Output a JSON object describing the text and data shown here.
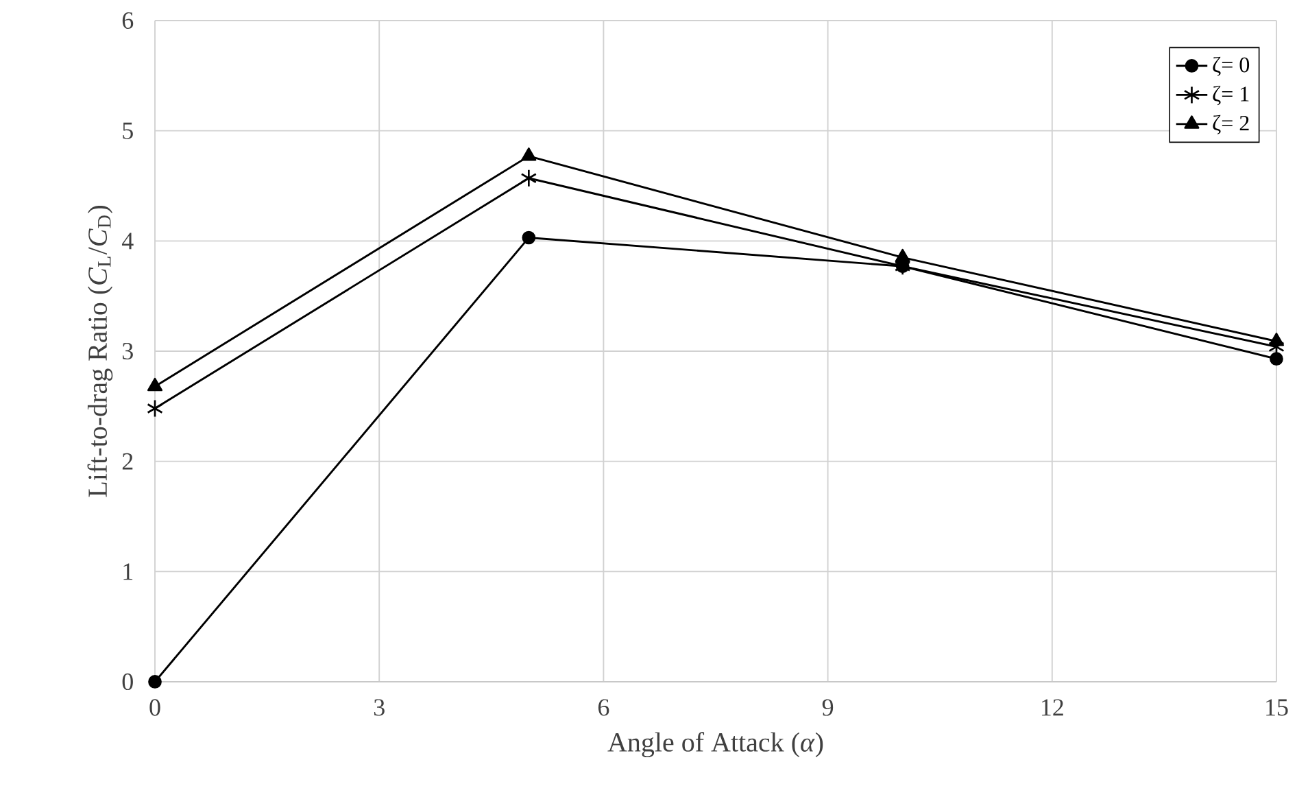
{
  "chart_data": {
    "type": "line",
    "xlabel": "Angle of Attack (*α*)",
    "ylabel": "Lift-to-drag Ratio (*C*$_{L}$/*C*$_{D}$)",
    "x": [
      0,
      5,
      10,
      15
    ],
    "series": [
      {
        "name": "ζ= 0",
        "color": "#000000",
        "marker": "circle",
        "values": [
          0,
          4.03,
          3.77,
          2.93
        ]
      },
      {
        "name": "ζ= 1",
        "color": "#000000",
        "marker": "cross",
        "values": [
          2.48,
          4.57,
          3.77,
          3.04
        ]
      },
      {
        "name": "ζ= 2",
        "color": "#000000",
        "marker": "triangle",
        "values": [
          2.68,
          4.77,
          3.85,
          3.09
        ]
      }
    ],
    "xlim": [
      0,
      15
    ],
    "xticks": [
      0,
      3,
      6,
      9,
      12,
      15
    ],
    "ylim": [
      0,
      6
    ],
    "yticks": [
      0,
      1,
      2,
      3,
      4,
      5,
      6
    ],
    "grid": true,
    "legend": "top right"
  }
}
